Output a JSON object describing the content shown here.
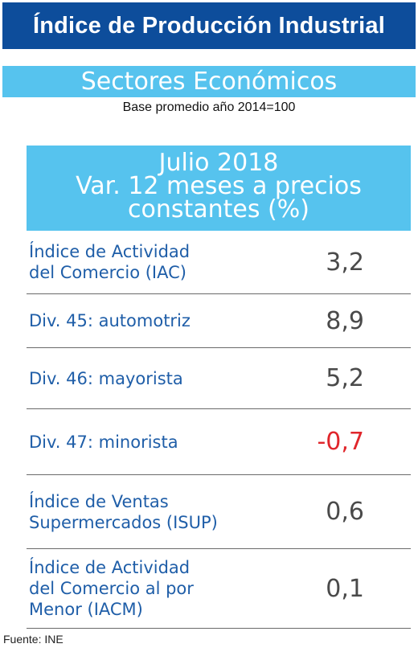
{
  "title": "Índice de Producción Industrial",
  "subtitle": "Sectores Económicos",
  "base_note": "Base promedio año 2014=100",
  "table_header": {
    "line1": "Julio 2018",
    "line2": "Var. 12 meses a precios",
    "line3": "constantes (%)"
  },
  "rows": [
    {
      "label_lines": [
        "Índice de Actividad",
        "del Comercio (IAC)"
      ],
      "value": "3,2",
      "negative": false
    },
    {
      "label_lines": [
        "Div. 45: automotriz"
      ],
      "value": "8,9",
      "negative": false
    },
    {
      "label_lines": [
        "Div. 46: mayorista"
      ],
      "value": "5,2",
      "negative": false
    },
    {
      "label_lines": [
        "Div. 47: minorista"
      ],
      "value": "-0,7",
      "negative": true
    },
    {
      "label_lines": [
        "Índice de Ventas",
        "Supermercados (ISUP)"
      ],
      "value": "0,6",
      "negative": false
    },
    {
      "label_lines": [
        "Índice de Actividad",
        "del Comercio al por",
        "Menor (IACM)"
      ],
      "value": "0,1",
      "negative": false
    }
  ],
  "source": "Fuente: INE",
  "colors": {
    "title_bg": "#0d4d9b",
    "header_bg": "#56c3ee",
    "label_text": "#1f5ea8",
    "value_text": "#4a4a4a",
    "negative_value": "#e0262b"
  }
}
